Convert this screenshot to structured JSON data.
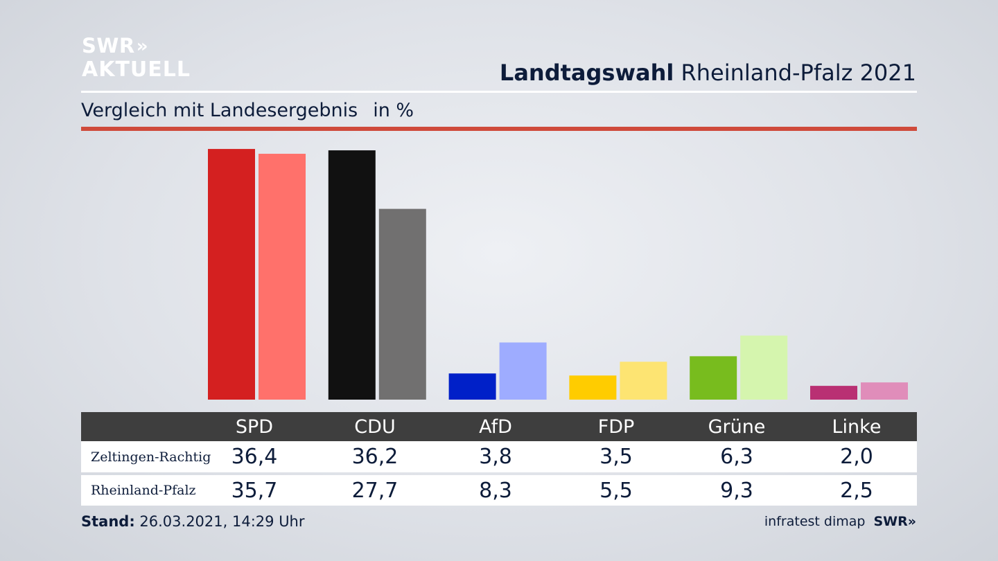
{
  "brand": {
    "line1": "SWR",
    "chevrons": "»",
    "line2": "AKTUELL"
  },
  "header": {
    "title_bold": "Landtagswahl",
    "title_rest": "Rheinland-Pfalz 2021"
  },
  "subtitle": {
    "text": "Vergleich mit Landesergebnis",
    "unit": "in %"
  },
  "colors": {
    "rule_red": "#cf4a3b",
    "table_header": "#3e3e3e"
  },
  "chart_data": {
    "type": "bar",
    "title": "",
    "xlabel": "",
    "ylabel": "",
    "ylim": [
      0,
      37
    ],
    "categories": [
      "SPD",
      "CDU",
      "AfD",
      "FDP",
      "Grüne",
      "Linke"
    ],
    "series": [
      {
        "name": "Zeltingen-Rachtig",
        "values": [
          36.4,
          36.2,
          3.8,
          3.5,
          6.3,
          2.0
        ],
        "labels": [
          "36,4",
          "36,2",
          "3,8",
          "3,5",
          "6,3",
          "2,0"
        ]
      },
      {
        "name": "Rheinland-Pfalz",
        "values": [
          35.7,
          27.7,
          8.3,
          5.5,
          9.3,
          2.5
        ],
        "labels": [
          "35,7",
          "27,7",
          "8,3",
          "5,5",
          "9,3",
          "2,5"
        ]
      }
    ],
    "colors": [
      {
        "local": "#d42020",
        "state": "#ff716b"
      },
      {
        "local": "#111111",
        "state": "#717070"
      },
      {
        "local": "#0020c8",
        "state": "#9eacff"
      },
      {
        "local": "#ffcc00",
        "state": "#fde472"
      },
      {
        "local": "#78bc1e",
        "state": "#d5f5ae"
      },
      {
        "local": "#b93073",
        "state": "#e08dba"
      }
    ]
  },
  "footer": {
    "stand_label": "Stand:",
    "stand_value": "26.03.2021, 14:29 Uhr",
    "source": "infratest dimap",
    "source_brand": "SWR»"
  }
}
